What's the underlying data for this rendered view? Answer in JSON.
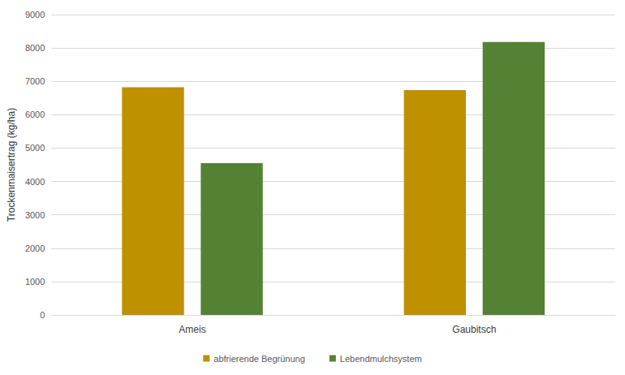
{
  "chart_data": {
    "type": "bar",
    "y_label": "Trockenmaisertrag (kg/ha)",
    "categories": [
      "Ameis",
      "Gaubitsch"
    ],
    "series": [
      {
        "name": "abfrierende Begrünung",
        "color": "#bf9000",
        "values": [
          6820,
          6740
        ]
      },
      {
        "name": "Lebendmulchsystem",
        "color": "#548235",
        "values": [
          4550,
          8180
        ]
      }
    ],
    "ylim": [
      0,
      9000
    ],
    "yticks": [
      0,
      1000,
      2000,
      3000,
      4000,
      5000,
      6000,
      7000,
      8000,
      9000
    ],
    "grid": true,
    "legend": "bottom"
  }
}
